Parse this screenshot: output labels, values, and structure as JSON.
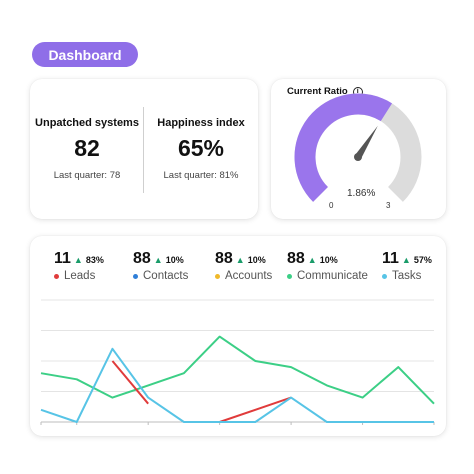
{
  "header": {
    "title": "Dashboard"
  },
  "kpis": [
    {
      "label": "Unpatched systems",
      "value": "82",
      "sub": "Last quarter: 78"
    },
    {
      "label": "Happiness index",
      "value": "65%",
      "sub": "Last quarter: 81%"
    }
  ],
  "ratio": {
    "title": "Current Ratio",
    "value_label": "1.86%",
    "min_label": "0",
    "max_label": "3",
    "value": 1.86,
    "min": 0,
    "max": 3,
    "colors": {
      "fill": "#9a75ec",
      "track": "#dcdcdc",
      "needle": "#555555"
    }
  },
  "metrics": [
    {
      "count": "11",
      "pct": "83%",
      "label": "Leads",
      "color": "#e03b3b"
    },
    {
      "count": "88",
      "pct": "10%",
      "label": "Contacts",
      "color": "#2f7fd8"
    },
    {
      "count": "88",
      "pct": "10%",
      "label": "Accounts",
      "color": "#f0b92a"
    },
    {
      "count": "88",
      "pct": "10%",
      "label": "Communicate",
      "color": "#3ccf86"
    },
    {
      "count": "11",
      "pct": "57%",
      "label": "Tasks",
      "color": "#57c4e6"
    }
  ],
  "chart_data": {
    "type": "line",
    "x": [
      0,
      1,
      2,
      3,
      4,
      5,
      6,
      7,
      8,
      9,
      10,
      11
    ],
    "ylim": [
      0,
      4
    ],
    "grid": true,
    "series": [
      {
        "name": "Communicate",
        "color": "#3ccf86",
        "values": [
          1.6,
          1.4,
          0.8,
          1.2,
          1.6,
          2.8,
          2.0,
          1.8,
          1.2,
          0.8,
          1.8,
          0.6
        ]
      },
      {
        "name": "Leads",
        "color": "#e03b3b",
        "values": [
          null,
          null,
          2.0,
          0.6,
          null,
          0.0,
          0.4,
          0.8,
          null,
          null,
          null,
          null
        ]
      },
      {
        "name": "Tasks",
        "color": "#57c4e6",
        "values": [
          0.4,
          0.0,
          2.4,
          0.8,
          0.0,
          0.0,
          0.0,
          0.8,
          0.0,
          0.0,
          0.0,
          0.0
        ]
      }
    ]
  }
}
